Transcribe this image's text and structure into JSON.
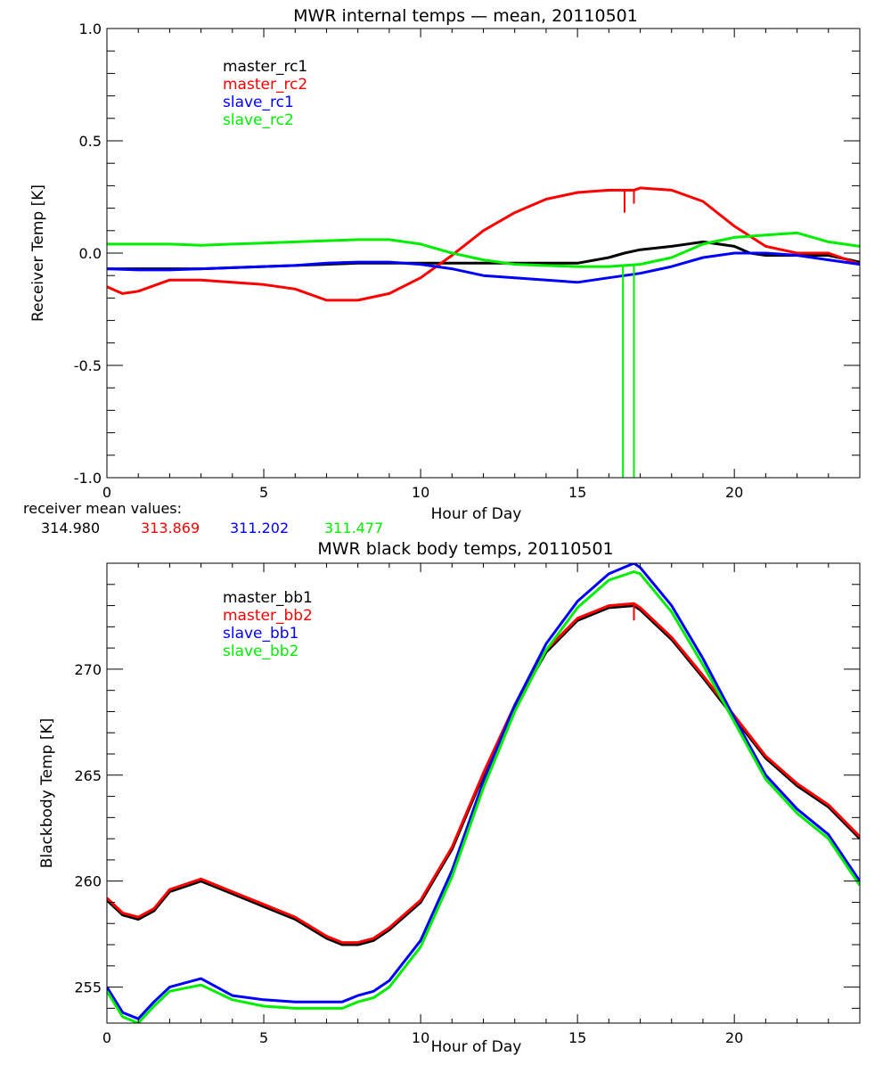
{
  "chart_data": [
    {
      "type": "line",
      "title": "MWR internal temps — mean, 20110501",
      "xlabel": "Hour of Day",
      "ylabel": "Receiver Temp [K]",
      "xlim": [
        0,
        24
      ],
      "ylim": [
        -1.0,
        1.0
      ],
      "xticks": [
        0,
        5,
        10,
        15,
        20
      ],
      "yticks": [
        -1.0,
        -0.5,
        0.0,
        0.5,
        1.0
      ],
      "ytick_labels": [
        "-1.0",
        "-0.5",
        "0.0",
        "0.5",
        "1.0"
      ],
      "grid": false,
      "legend": "top-left",
      "series": [
        {
          "name": "master_rc1",
          "color": "#000000",
          "x": [
            0,
            1,
            2,
            3,
            4,
            5,
            6,
            7,
            8,
            9,
            10,
            11,
            12,
            13,
            14,
            15,
            16,
            16.5,
            17,
            18,
            19,
            20,
            20.5,
            21,
            22,
            23,
            24
          ],
          "y": [
            -0.07,
            -0.07,
            -0.07,
            -0.07,
            -0.065,
            -0.06,
            -0.055,
            -0.05,
            -0.045,
            -0.045,
            -0.045,
            -0.045,
            -0.045,
            -0.045,
            -0.045,
            -0.045,
            -0.02,
            0.0,
            0.015,
            0.03,
            0.05,
            0.03,
            0.0,
            -0.01,
            -0.01,
            -0.01,
            -0.04
          ]
        },
        {
          "name": "master_rc2",
          "color": "#ff0000",
          "x": [
            0,
            0.5,
            1,
            2,
            3,
            4,
            5,
            6,
            7,
            7.5,
            8,
            9,
            10,
            11,
            12,
            13,
            14,
            15,
            16,
            16.8,
            17,
            18,
            19,
            20,
            21,
            22,
            23,
            24
          ],
          "y": [
            -0.15,
            -0.18,
            -0.17,
            -0.12,
            -0.12,
            -0.13,
            -0.14,
            -0.16,
            -0.21,
            -0.21,
            -0.21,
            -0.18,
            -0.11,
            -0.01,
            0.1,
            0.18,
            0.24,
            0.27,
            0.28,
            0.28,
            0.29,
            0.28,
            0.23,
            0.12,
            0.03,
            0.0,
            0.0,
            -0.05
          ]
        },
        {
          "name": "slave_rc1",
          "color": "#0000ff",
          "x": [
            0,
            1,
            2,
            3,
            4,
            5,
            6,
            7,
            8,
            9,
            10,
            11,
            12,
            13,
            14,
            15,
            16,
            17,
            18,
            19,
            20,
            21,
            22,
            23,
            24
          ],
          "y": [
            -0.07,
            -0.075,
            -0.075,
            -0.07,
            -0.065,
            -0.06,
            -0.055,
            -0.045,
            -0.04,
            -0.04,
            -0.05,
            -0.07,
            -0.1,
            -0.11,
            -0.12,
            -0.13,
            -0.11,
            -0.09,
            -0.06,
            -0.02,
            0.0,
            0.0,
            -0.01,
            -0.03,
            -0.05
          ]
        },
        {
          "name": "slave_rc2",
          "color": "#00ee00",
          "x": [
            0,
            1,
            2,
            3,
            4,
            5,
            6,
            7,
            8,
            9,
            10,
            11,
            12,
            13,
            14,
            15,
            16,
            17,
            18,
            19,
            20,
            21,
            22,
            23,
            24
          ],
          "y": [
            0.04,
            0.04,
            0.04,
            0.035,
            0.04,
            0.045,
            0.05,
            0.055,
            0.06,
            0.06,
            0.04,
            0.0,
            -0.03,
            -0.05,
            -0.055,
            -0.06,
            -0.06,
            -0.05,
            -0.02,
            0.04,
            0.07,
            0.08,
            0.09,
            0.05,
            0.03
          ]
        }
      ],
      "drops": [
        {
          "series": "slave_rc2",
          "x": 16.45,
          "to": -1.0
        },
        {
          "series": "slave_rc2",
          "x": 16.8,
          "to": -1.0
        },
        {
          "series": "master_rc2",
          "x": 16.5,
          "to": 0.18
        },
        {
          "series": "master_rc2",
          "x": 16.8,
          "to": 0.22
        }
      ]
    },
    {
      "type": "line",
      "title": "MWR black body temps, 20110501",
      "xlabel": "Hour of Day",
      "ylabel": "Blackbody Temp [K]",
      "xlim": [
        0,
        24
      ],
      "ylim": [
        253.3,
        275.0
      ],
      "xticks": [
        0,
        5,
        10,
        15,
        20
      ],
      "yticks": [
        255,
        260,
        265,
        270
      ],
      "ytick_labels": [
        "255",
        "260",
        "265",
        "270"
      ],
      "grid": false,
      "legend": "top-left",
      "series": [
        {
          "name": "master_bb1",
          "color": "#000000",
          "x": [
            0,
            0.5,
            1,
            1.5,
            2,
            3,
            4,
            5,
            6,
            7,
            7.5,
            8,
            8.5,
            9,
            10,
            11,
            12,
            13,
            14,
            15,
            16,
            16.8,
            17,
            18,
            19,
            20,
            21,
            22,
            23,
            24
          ],
          "y": [
            259.1,
            258.4,
            258.2,
            258.6,
            259.5,
            260.0,
            259.4,
            258.8,
            258.2,
            257.3,
            257.0,
            257.0,
            257.2,
            257.7,
            259.0,
            261.5,
            265.0,
            268.2,
            270.8,
            272.3,
            272.9,
            273.0,
            272.8,
            271.4,
            269.6,
            267.7,
            265.8,
            264.5,
            263.5,
            262.0
          ]
        },
        {
          "name": "master_bb2",
          "color": "#ff0000",
          "x": [
            0,
            0.5,
            1,
            1.5,
            2,
            3,
            4,
            5,
            6,
            7,
            7.5,
            8,
            8.5,
            9,
            10,
            11,
            12,
            13,
            14,
            15,
            16,
            16.8,
            17,
            18,
            19,
            20,
            21,
            22,
            23,
            24
          ],
          "y": [
            259.2,
            258.5,
            258.3,
            258.7,
            259.6,
            260.1,
            259.5,
            258.9,
            258.3,
            257.4,
            257.1,
            257.1,
            257.3,
            257.8,
            259.1,
            261.6,
            265.1,
            268.3,
            270.9,
            272.4,
            273.0,
            273.1,
            272.9,
            271.5,
            269.7,
            267.8,
            265.9,
            264.6,
            263.6,
            262.1
          ]
        },
        {
          "name": "slave_bb1",
          "color": "#0000ff",
          "x": [
            0,
            0.5,
            1,
            1.5,
            2,
            3,
            4,
            5,
            6,
            7,
            7.5,
            8,
            8.5,
            9,
            10,
            11,
            12,
            13,
            14,
            15,
            16,
            16.8,
            17,
            18,
            19,
            20,
            21,
            22,
            23,
            24
          ],
          "y": [
            255.0,
            253.8,
            253.5,
            254.3,
            255.0,
            255.4,
            254.6,
            254.4,
            254.3,
            254.3,
            254.3,
            254.6,
            254.8,
            255.3,
            257.2,
            260.5,
            264.7,
            268.3,
            271.2,
            273.2,
            274.5,
            275.0,
            274.8,
            273.0,
            270.5,
            267.7,
            265.0,
            263.4,
            262.2,
            260.0
          ]
        },
        {
          "name": "slave_bb2",
          "color": "#00ee00",
          "x": [
            0,
            0.5,
            1,
            1.5,
            2,
            3,
            4,
            5,
            6,
            7,
            7.5,
            8,
            8.5,
            9,
            10,
            11,
            12,
            13,
            14,
            15,
            16,
            16.8,
            17,
            18,
            19,
            20,
            21,
            22,
            23,
            24
          ],
          "y": [
            254.8,
            253.6,
            253.3,
            254.1,
            254.8,
            255.1,
            254.4,
            254.1,
            254.0,
            254.0,
            254.0,
            254.3,
            254.5,
            255.0,
            256.9,
            260.2,
            264.4,
            268.0,
            270.9,
            272.9,
            274.2,
            274.6,
            274.5,
            272.7,
            270.2,
            267.5,
            264.8,
            263.2,
            262.0,
            259.8
          ]
        }
      ],
      "drops": [
        {
          "series": "master_bb2",
          "x": 16.8,
          "to": 272.3
        }
      ]
    }
  ],
  "receiver_means": {
    "label": "receiver mean values:",
    "values": [
      {
        "text": "314.980",
        "color": "#000000"
      },
      {
        "text": "313.869",
        "color": "#ff0000"
      },
      {
        "text": "311.202",
        "color": "#0000ff"
      },
      {
        "text": "311.477",
        "color": "#00ee00"
      }
    ]
  }
}
